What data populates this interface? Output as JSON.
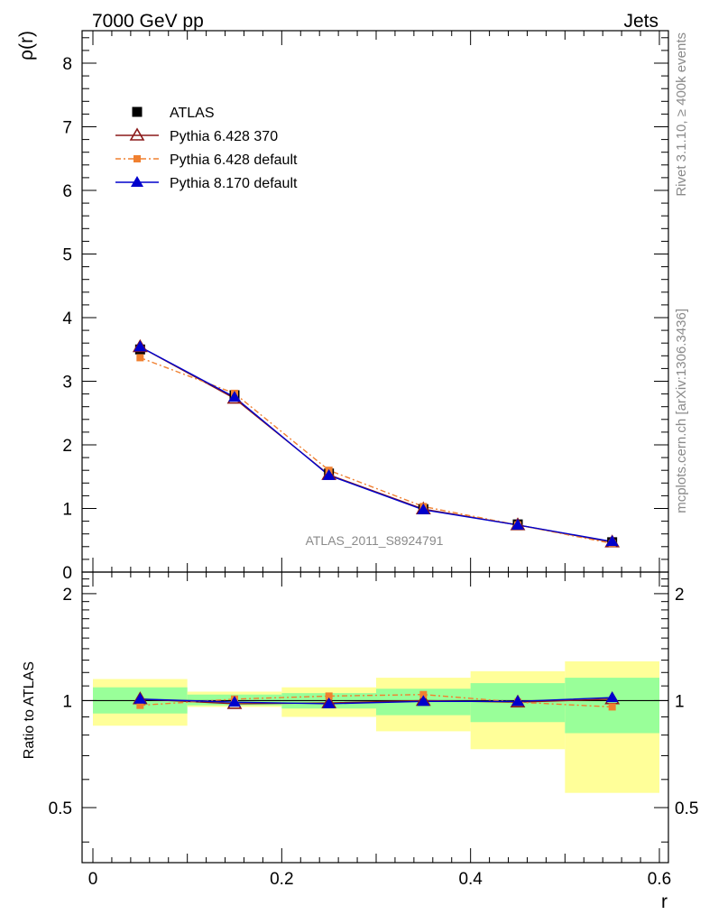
{
  "header": {
    "left": "7000 GeV pp",
    "right": "Jets"
  },
  "side_text": {
    "top": "Rivet 3.1.10, ≥ 400k events",
    "bottom": "mcplots.cern.ch [arXiv:1306.3436]"
  },
  "analysis_label": "ATLAS_2011_S8924791",
  "legend": {
    "items": [
      {
        "label": "ATLAS",
        "marker": "square-filled",
        "color": "#000000"
      },
      {
        "label": "Pythia 6.428 370",
        "marker": "triangle-open",
        "color": "#8b1a1a"
      },
      {
        "label": "Pythia 6.428 default",
        "marker": "square-small",
        "color": "#f08030"
      },
      {
        "label": "Pythia 8.170 default",
        "marker": "triangle-filled",
        "color": "#0000cc"
      }
    ]
  },
  "chart_data": [
    {
      "type": "line",
      "panel": "main",
      "ylabel": "ρ(r)",
      "xlim": [
        0,
        0.6
      ],
      "ylim": [
        0,
        8.5
      ],
      "yticks": [
        "0",
        "1",
        "2",
        "3",
        "4",
        "5",
        "6",
        "7",
        "8"
      ],
      "x": [
        0.05,
        0.15,
        0.25,
        0.35,
        0.45,
        0.55
      ],
      "series": [
        {
          "name": "ATLAS",
          "color": "#000000",
          "values": [
            3.5,
            2.78,
            1.55,
            0.99,
            0.75,
            0.47
          ]
        },
        {
          "name": "Pythia 6.428 370",
          "color": "#8b1a1a",
          "values": [
            3.54,
            2.73,
            1.53,
            0.99,
            0.74,
            0.47
          ]
        },
        {
          "name": "Pythia 6.428 default",
          "color": "#f08030",
          "values": [
            3.37,
            2.81,
            1.6,
            1.03,
            0.74,
            0.45
          ]
        },
        {
          "name": "Pythia 8.170 default",
          "color": "#0000cc",
          "values": [
            3.54,
            2.75,
            1.52,
            0.98,
            0.74,
            0.48
          ]
        }
      ]
    },
    {
      "type": "line",
      "panel": "ratio",
      "ylabel": "Ratio to ATLAS",
      "xlabel": "r",
      "xlim": [
        0,
        0.6
      ],
      "ylim": [
        0.35,
        2.3
      ],
      "xticks": [
        "0",
        "0.2",
        "0.4",
        "0.6"
      ],
      "yticks": [
        "0.5",
        "1",
        "2"
      ],
      "bins": [
        [
          0.0,
          0.1
        ],
        [
          0.1,
          0.2
        ],
        [
          0.2,
          0.3
        ],
        [
          0.3,
          0.4
        ],
        [
          0.4,
          0.5
        ],
        [
          0.5,
          0.6
        ]
      ],
      "band_inner": {
        "color": "#99ff99",
        "lo": [
          0.92,
          0.97,
          0.95,
          0.91,
          0.87,
          0.81
        ],
        "hi": [
          1.09,
          1.04,
          1.05,
          1.08,
          1.12,
          1.16
        ]
      },
      "band_outer": {
        "color": "#ffff99",
        "lo": [
          0.85,
          0.96,
          0.9,
          0.82,
          0.73,
          0.55
        ],
        "hi": [
          1.15,
          1.06,
          1.09,
          1.16,
          1.21,
          1.29
        ]
      },
      "x": [
        0.05,
        0.15,
        0.25,
        0.35,
        0.45,
        0.55
      ],
      "series": [
        {
          "name": "Pythia 6.428 370",
          "color": "#8b1a1a",
          "values": [
            1.01,
            0.98,
            0.985,
            1.0,
            0.99,
            1.01
          ]
        },
        {
          "name": "Pythia 6.428 default",
          "color": "#f08030",
          "values": [
            0.97,
            1.01,
            1.03,
            1.04,
            0.99,
            0.96
          ]
        },
        {
          "name": "Pythia 8.170 default",
          "color": "#0000cc",
          "values": [
            1.01,
            0.99,
            0.98,
            0.995,
            0.995,
            1.02
          ]
        }
      ]
    }
  ]
}
